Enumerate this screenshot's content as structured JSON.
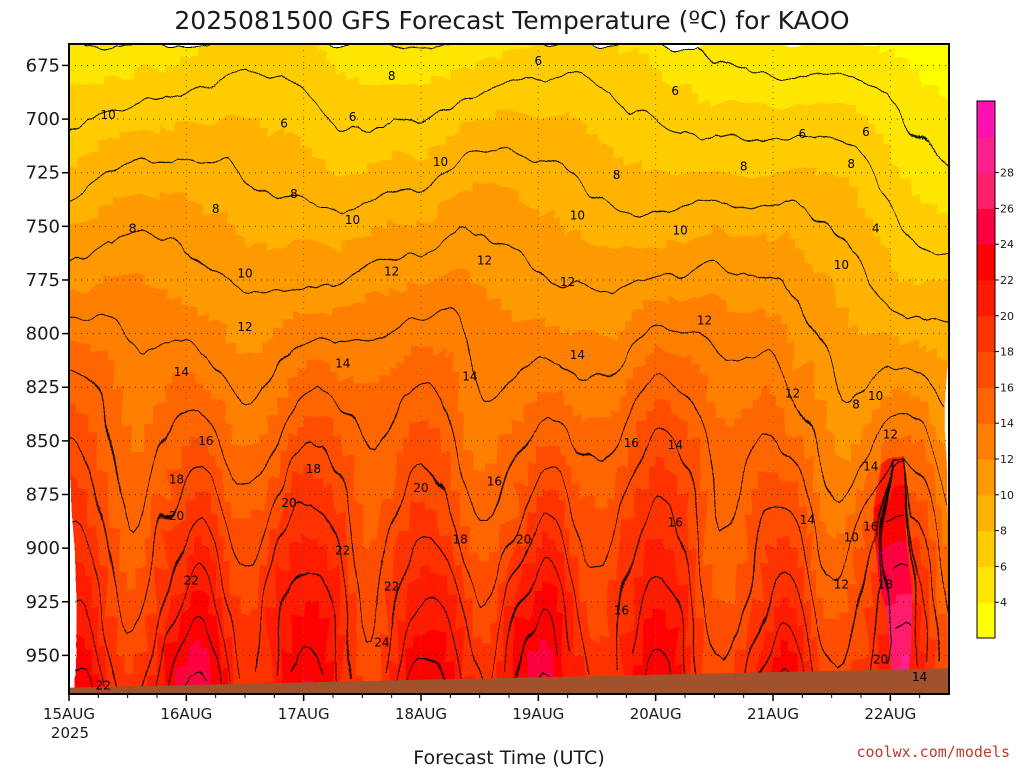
{
  "chart_data": {
    "type": "heatmap",
    "title": "2025081500 GFS Forecast Temperature (ºC) for KAOO",
    "xlabel": "Forecast Time (UTC)",
    "ylabel": "",
    "credit": "coolwx.com/models",
    "y_ticks": [
      675,
      700,
      725,
      750,
      775,
      800,
      825,
      850,
      875,
      900,
      925,
      950
    ],
    "y_range": [
      665,
      968
    ],
    "x_ticks": [
      "15AUG",
      "16AUG",
      "17AUG",
      "18AUG",
      "19AUG",
      "20AUG",
      "21AUG",
      "22AUG"
    ],
    "x_year_label": "2025",
    "x_range_hours": [
      0,
      180
    ],
    "colorbar": {
      "ticks": [
        4,
        6,
        8,
        10,
        12,
        14,
        16,
        18,
        20,
        22,
        24,
        26,
        28
      ],
      "colors": [
        "#ffff00",
        "#ffe600",
        "#ffcc00",
        "#ffb300",
        "#ff9900",
        "#ff8000",
        "#ff6600",
        "#ff4d00",
        "#ff3300",
        "#ff1a00",
        "#ff0000",
        "#ff0040",
        "#ff1f6a",
        "#ff2090",
        "#ff10b0"
      ]
    },
    "ground_color": "#a0522d",
    "contour_labels": [
      {
        "v": "8",
        "t": 13,
        "p": 751
      },
      {
        "v": "8",
        "t": 30,
        "p": 742
      },
      {
        "v": "8",
        "t": 46,
        "p": 735
      },
      {
        "v": "8",
        "t": 66,
        "p": 680
      },
      {
        "v": "6",
        "t": 44,
        "p": 702
      },
      {
        "v": "6",
        "t": 58,
        "p": 699
      },
      {
        "v": "6",
        "t": 96,
        "p": 673
      },
      {
        "v": "6",
        "t": 124,
        "p": 687
      },
      {
        "v": "6",
        "t": 150,
        "p": 707
      },
      {
        "v": "6",
        "t": 163,
        "p": 706
      },
      {
        "v": "8",
        "t": 112,
        "p": 726
      },
      {
        "v": "8",
        "t": 138,
        "p": 722
      },
      {
        "v": "8",
        "t": 160,
        "p": 721
      },
      {
        "v": "10",
        "t": 36,
        "p": 772
      },
      {
        "v": "10",
        "t": 58,
        "p": 747
      },
      {
        "v": "10",
        "t": 76,
        "p": 720
      },
      {
        "v": "10",
        "t": 104,
        "p": 745
      },
      {
        "v": "10",
        "t": 125,
        "p": 752
      },
      {
        "v": "10",
        "t": 158,
        "p": 768
      },
      {
        "v": "4",
        "t": 165,
        "p": 751
      },
      {
        "v": "12",
        "t": 36,
        "p": 797
      },
      {
        "v": "12",
        "t": 66,
        "p": 771
      },
      {
        "v": "12",
        "t": 85,
        "p": 766
      },
      {
        "v": "12",
        "t": 102,
        "p": 776
      },
      {
        "v": "12",
        "t": 130,
        "p": 794
      },
      {
        "v": "12",
        "t": 148,
        "p": 828
      },
      {
        "v": "14",
        "t": 23,
        "p": 818
      },
      {
        "v": "14",
        "t": 56,
        "p": 814
      },
      {
        "v": "14",
        "t": 82,
        "p": 820
      },
      {
        "v": "14",
        "t": 104,
        "p": 810
      },
      {
        "v": "14",
        "t": 124,
        "p": 852
      },
      {
        "v": "14",
        "t": 151,
        "p": 887
      },
      {
        "v": "16",
        "t": 28,
        "p": 850
      },
      {
        "v": "16",
        "t": 87,
        "p": 869
      },
      {
        "v": "16",
        "t": 115,
        "p": 851
      },
      {
        "v": "16",
        "t": 124,
        "p": 888
      },
      {
        "v": "16",
        "t": 113,
        "p": 929
      },
      {
        "v": "16",
        "t": 164,
        "p": 890
      },
      {
        "v": "18",
        "t": 22,
        "p": 868
      },
      {
        "v": "18",
        "t": 50,
        "p": 863
      },
      {
        "v": "18",
        "t": 80,
        "p": 896
      },
      {
        "v": "20",
        "t": 22,
        "p": 885
      },
      {
        "v": "20",
        "t": 45,
        "p": 879
      },
      {
        "v": "20",
        "t": 72,
        "p": 872
      },
      {
        "v": "20",
        "t": 93,
        "p": 896
      },
      {
        "v": "22",
        "t": 25,
        "p": 915
      },
      {
        "v": "22",
        "t": 56,
        "p": 901
      },
      {
        "v": "22",
        "t": 66,
        "p": 918
      },
      {
        "v": "22",
        "t": 7,
        "p": 964
      },
      {
        "v": "24",
        "t": 64,
        "p": 944
      },
      {
        "v": "18",
        "t": 167,
        "p": 917
      },
      {
        "v": "20",
        "t": 166,
        "p": 952
      },
      {
        "v": "14",
        "t": 164,
        "p": 862
      },
      {
        "v": "12",
        "t": 158,
        "p": 917
      },
      {
        "v": "10",
        "t": 160,
        "p": 895
      },
      {
        "v": "10",
        "t": 165,
        "p": 829
      },
      {
        "v": "8",
        "t": 161,
        "p": 833
      },
      {
        "v": "12",
        "t": 168,
        "p": 847
      },
      {
        "v": "14",
        "t": 174,
        "p": 960
      },
      {
        "v": "10",
        "t": 8,
        "p": 698
      }
    ]
  }
}
